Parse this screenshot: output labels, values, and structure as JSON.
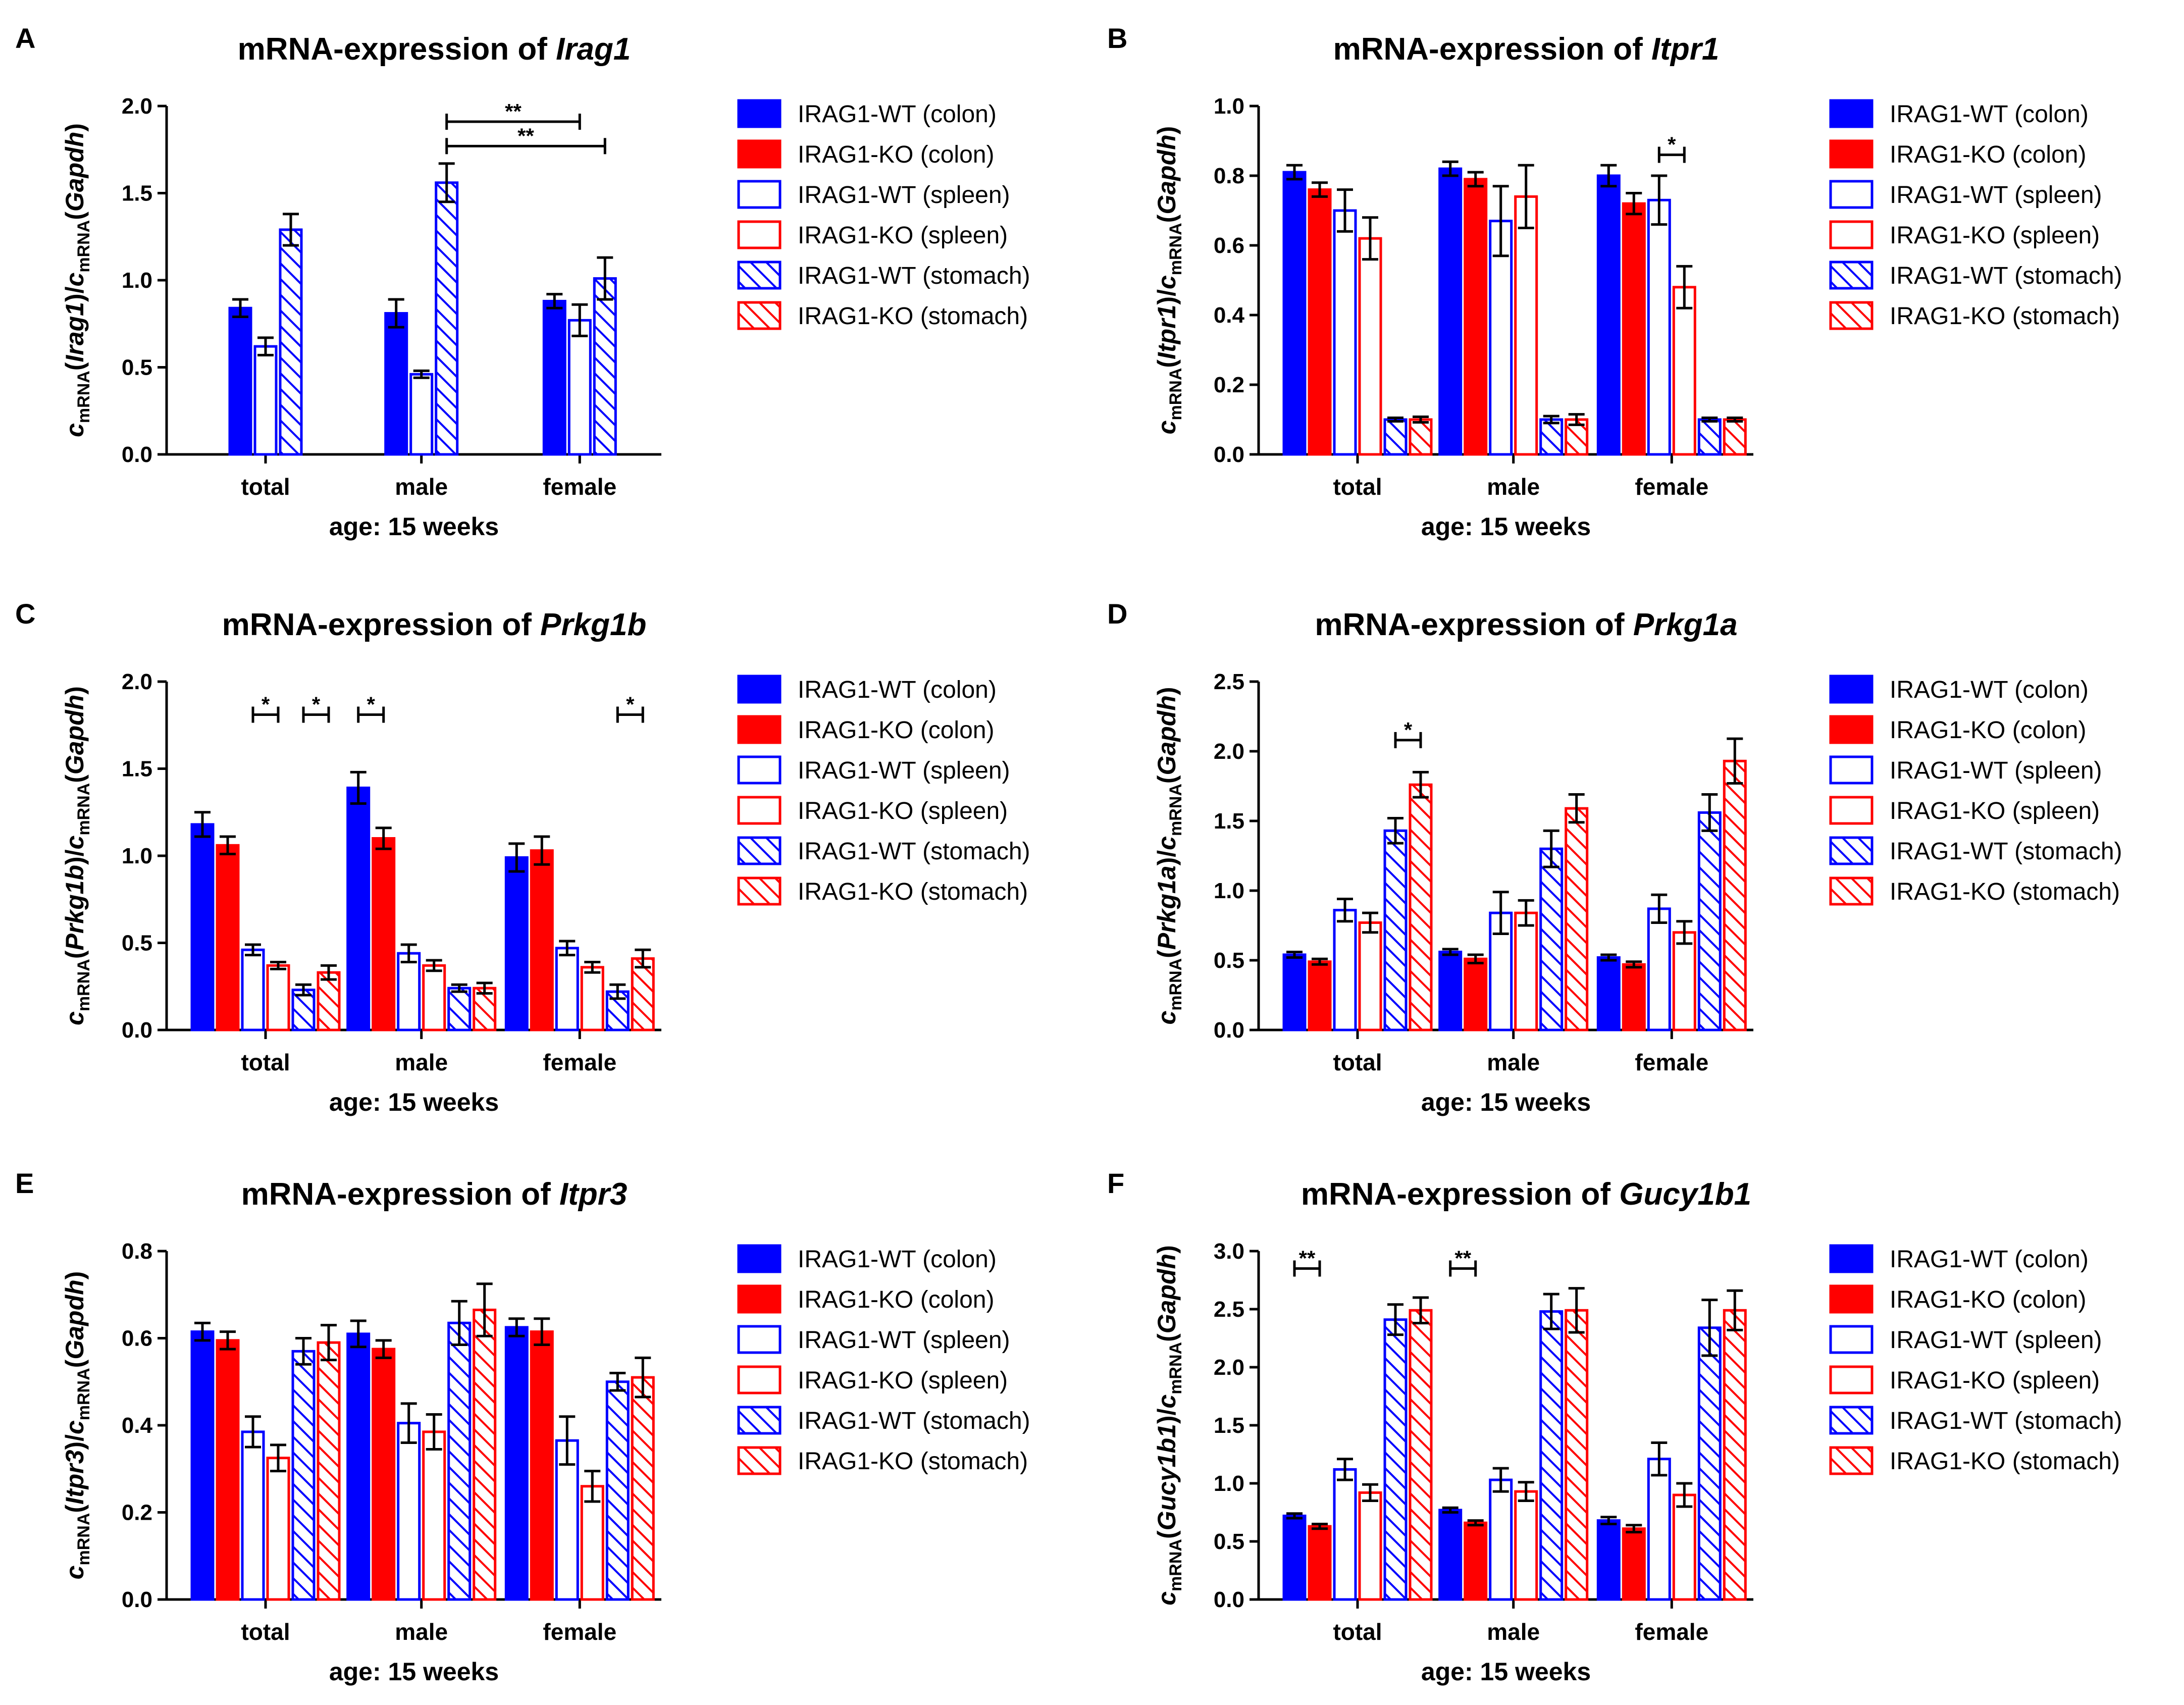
{
  "colors": {
    "wt": "#0000ff",
    "ko": "#ff0000",
    "axis": "#000000"
  },
  "legend": [
    {
      "label": "IRAG1-WT (colon)",
      "color": "#0000ff",
      "style": "solid"
    },
    {
      "label": "IRAG1-KO (colon)",
      "color": "#ff0000",
      "style": "solid"
    },
    {
      "label": "IRAG1-WT (spleen)",
      "color": "#0000ff",
      "style": "open"
    },
    {
      "label": "IRAG1-KO (spleen)",
      "color": "#ff0000",
      "style": "open"
    },
    {
      "label": "IRAG1-WT (stomach)",
      "color": "#0000ff",
      "style": "hatch"
    },
    {
      "label": "IRAG1-KO (stomach)",
      "color": "#ff0000",
      "style": "hatch"
    }
  ],
  "chart_data": [
    {
      "panel": "A",
      "type": "bar",
      "title_prefix": "mRNA-expression of ",
      "gene": "Irag1",
      "ylabel_gene": "Irag1",
      "categories": [
        "total",
        "male",
        "female"
      ],
      "xlabel": "age: 15 weeks",
      "ylim": [
        0,
        2.0
      ],
      "yticks": [
        "0.0",
        "0.5",
        "1.0",
        "1.5",
        "2.0"
      ],
      "series": [
        {
          "name": "IRAG1-WT (colon)",
          "values": [
            0.84,
            0.81,
            0.88
          ],
          "errors": [
            0.05,
            0.08,
            0.04
          ]
        },
        {
          "name": "IRAG1-WT (spleen)",
          "values": [
            0.62,
            0.46,
            0.77
          ],
          "errors": [
            0.05,
            0.02,
            0.09
          ]
        },
        {
          "name": "IRAG1-WT (stomach)",
          "values": [
            1.29,
            1.56,
            1.01
          ],
          "errors": [
            0.09,
            0.11,
            0.12
          ]
        }
      ],
      "significance": [
        {
          "label": "**",
          "from": [
            1,
            2
          ],
          "to": [
            2,
            1
          ],
          "y": 1.91
        },
        {
          "label": "**",
          "from": [
            1,
            2
          ],
          "to": [
            2,
            2
          ],
          "y": 1.77
        }
      ]
    },
    {
      "panel": "B",
      "type": "bar",
      "title_prefix": "mRNA-expression of ",
      "gene": "Itpr1",
      "ylabel_gene": "Itpr1",
      "categories": [
        "total",
        "male",
        "female"
      ],
      "xlabel": "age: 15 weeks",
      "ylim": [
        0,
        1.0
      ],
      "yticks": [
        "0.0",
        "0.2",
        "0.4",
        "0.6",
        "0.8",
        "1.0"
      ],
      "series": [
        {
          "name": "IRAG1-WT (colon)",
          "values": [
            0.81,
            0.82,
            0.8
          ],
          "errors": [
            0.02,
            0.02,
            0.03
          ]
        },
        {
          "name": "IRAG1-KO (colon)",
          "values": [
            0.76,
            0.79,
            0.72
          ],
          "errors": [
            0.02,
            0.02,
            0.03
          ]
        },
        {
          "name": "IRAG1-WT (spleen)",
          "values": [
            0.7,
            0.67,
            0.73
          ],
          "errors": [
            0.06,
            0.1,
            0.07
          ]
        },
        {
          "name": "IRAG1-KO (spleen)",
          "values": [
            0.62,
            0.74,
            0.48
          ],
          "errors": [
            0.06,
            0.09,
            0.06
          ]
        },
        {
          "name": "IRAG1-WT (stomach)",
          "values": [
            0.1,
            0.1,
            0.1
          ],
          "errors": [
            0.005,
            0.01,
            0.005
          ]
        },
        {
          "name": "IRAG1-KO (stomach)",
          "values": [
            0.1,
            0.1,
            0.1
          ],
          "errors": [
            0.008,
            0.015,
            0.005
          ]
        }
      ],
      "significance": [
        {
          "label": "*",
          "from": [
            2,
            2
          ],
          "to": [
            2,
            3
          ],
          "y": 0.86
        }
      ]
    },
    {
      "panel": "C",
      "type": "bar",
      "title_prefix": "mRNA-expression of ",
      "gene": "Prkg1b",
      "ylabel_gene": "Prkg1b",
      "categories": [
        "total",
        "male",
        "female"
      ],
      "xlabel": "age: 15 weeks",
      "ylim": [
        0,
        2.0
      ],
      "yticks": [
        "0.0",
        "0.5",
        "1.0",
        "1.5",
        "2.0"
      ],
      "series": [
        {
          "name": "IRAG1-WT (colon)",
          "values": [
            1.18,
            1.39,
            0.99
          ],
          "errors": [
            0.07,
            0.09,
            0.08
          ]
        },
        {
          "name": "IRAG1-KO (colon)",
          "values": [
            1.06,
            1.1,
            1.03
          ],
          "errors": [
            0.05,
            0.06,
            0.08
          ]
        },
        {
          "name": "IRAG1-WT (spleen)",
          "values": [
            0.46,
            0.44,
            0.47
          ],
          "errors": [
            0.03,
            0.05,
            0.04
          ]
        },
        {
          "name": "IRAG1-KO (spleen)",
          "values": [
            0.37,
            0.37,
            0.36
          ],
          "errors": [
            0.02,
            0.03,
            0.03
          ]
        },
        {
          "name": "IRAG1-WT (stomach)",
          "values": [
            0.23,
            0.24,
            0.22
          ],
          "errors": [
            0.03,
            0.02,
            0.04
          ]
        },
        {
          "name": "IRAG1-KO (stomach)",
          "values": [
            0.33,
            0.24,
            0.41
          ],
          "errors": [
            0.04,
            0.03,
            0.05
          ]
        }
      ],
      "significance": [
        {
          "label": "*",
          "from": [
            0,
            2
          ],
          "to": [
            0,
            3
          ],
          "y": 1.81
        },
        {
          "label": "*",
          "from": [
            0,
            4
          ],
          "to": [
            0,
            5
          ],
          "y": 1.81
        },
        {
          "label": "*",
          "from": [
            1,
            0
          ],
          "to": [
            1,
            1
          ],
          "y": 1.81
        },
        {
          "label": "*",
          "from": [
            2,
            4
          ],
          "to": [
            2,
            5
          ],
          "y": 1.81
        }
      ]
    },
    {
      "panel": "D",
      "type": "bar",
      "title_prefix": "mRNA-expression of ",
      "gene": "Prkg1a",
      "ylabel_gene": "Prkg1a",
      "categories": [
        "total",
        "male",
        "female"
      ],
      "xlabel": "age: 15 weeks",
      "ylim": [
        0,
        2.5
      ],
      "yticks": [
        "0.0",
        "0.5",
        "1.0",
        "1.5",
        "2.0",
        "2.5"
      ],
      "series": [
        {
          "name": "IRAG1-WT (colon)",
          "values": [
            0.54,
            0.56,
            0.52
          ],
          "errors": [
            0.02,
            0.02,
            0.02
          ]
        },
        {
          "name": "IRAG1-KO (colon)",
          "values": [
            0.49,
            0.51,
            0.47
          ],
          "errors": [
            0.02,
            0.03,
            0.02
          ]
        },
        {
          "name": "IRAG1-WT (spleen)",
          "values": [
            0.86,
            0.84,
            0.87
          ],
          "errors": [
            0.08,
            0.15,
            0.1
          ]
        },
        {
          "name": "IRAG1-KO (spleen)",
          "values": [
            0.77,
            0.84,
            0.7
          ],
          "errors": [
            0.07,
            0.09,
            0.08
          ]
        },
        {
          "name": "IRAG1-WT (stomach)",
          "values": [
            1.43,
            1.3,
            1.56
          ],
          "errors": [
            0.09,
            0.13,
            0.13
          ]
        },
        {
          "name": "IRAG1-KO (stomach)",
          "values": [
            1.76,
            1.59,
            1.93
          ],
          "errors": [
            0.09,
            0.1,
            0.16
          ]
        }
      ],
      "significance": [
        {
          "label": "*",
          "from": [
            0,
            4
          ],
          "to": [
            0,
            5
          ],
          "y": 2.08
        }
      ]
    },
    {
      "panel": "E",
      "type": "bar",
      "title_prefix": "mRNA-expression of ",
      "gene": "Itpr3",
      "ylabel_gene": "Itpr3",
      "categories": [
        "total",
        "male",
        "female"
      ],
      "xlabel": "age: 15 weeks",
      "ylim": [
        0,
        0.8
      ],
      "yticks": [
        "0.0",
        "0.2",
        "0.4",
        "0.6",
        "0.8"
      ],
      "series": [
        {
          "name": "IRAG1-WT (colon)",
          "values": [
            0.615,
            0.61,
            0.625
          ],
          "errors": [
            0.02,
            0.03,
            0.02
          ]
        },
        {
          "name": "IRAG1-KO (colon)",
          "values": [
            0.595,
            0.575,
            0.615
          ],
          "errors": [
            0.02,
            0.02,
            0.03
          ]
        },
        {
          "name": "IRAG1-WT (spleen)",
          "values": [
            0.385,
            0.405,
            0.365
          ],
          "errors": [
            0.035,
            0.045,
            0.055
          ]
        },
        {
          "name": "IRAG1-KO (spleen)",
          "values": [
            0.325,
            0.385,
            0.26
          ],
          "errors": [
            0.03,
            0.04,
            0.035
          ]
        },
        {
          "name": "IRAG1-WT (stomach)",
          "values": [
            0.57,
            0.635,
            0.5
          ],
          "errors": [
            0.03,
            0.05,
            0.02
          ]
        },
        {
          "name": "IRAG1-KO (stomach)",
          "values": [
            0.59,
            0.665,
            0.51
          ],
          "errors": [
            0.04,
            0.06,
            0.045
          ]
        }
      ],
      "significance": []
    },
    {
      "panel": "F",
      "type": "bar",
      "title_prefix": "mRNA-expression of ",
      "gene": "Gucy1b1",
      "ylabel_gene": "Gucy1b1",
      "categories": [
        "total",
        "male",
        "female"
      ],
      "xlabel": "age: 15 weeks",
      "ylim": [
        0,
        3.0
      ],
      "yticks": [
        "0.0",
        "0.5",
        "1.0",
        "1.5",
        "2.0",
        "2.5",
        "3.0"
      ],
      "series": [
        {
          "name": "IRAG1-WT (colon)",
          "values": [
            0.72,
            0.77,
            0.68
          ],
          "errors": [
            0.02,
            0.02,
            0.03
          ]
        },
        {
          "name": "IRAG1-KO (colon)",
          "values": [
            0.63,
            0.66,
            0.61
          ],
          "errors": [
            0.02,
            0.02,
            0.03
          ]
        },
        {
          "name": "IRAG1-WT (spleen)",
          "values": [
            1.12,
            1.03,
            1.21
          ],
          "errors": [
            0.09,
            0.1,
            0.14
          ]
        },
        {
          "name": "IRAG1-KO (spleen)",
          "values": [
            0.92,
            0.93,
            0.9
          ],
          "errors": [
            0.07,
            0.08,
            0.1
          ]
        },
        {
          "name": "IRAG1-WT (stomach)",
          "values": [
            2.41,
            2.48,
            2.34
          ],
          "errors": [
            0.13,
            0.15,
            0.24
          ]
        },
        {
          "name": "IRAG1-KO (stomach)",
          "values": [
            2.49,
            2.49,
            2.49
          ],
          "errors": [
            0.11,
            0.19,
            0.17
          ]
        }
      ],
      "significance": [
        {
          "label": "**",
          "from": [
            0,
            0
          ],
          "to": [
            0,
            1
          ],
          "y": 2.85
        },
        {
          "label": "**",
          "from": [
            1,
            0
          ],
          "to": [
            1,
            1
          ],
          "y": 2.85
        }
      ]
    }
  ]
}
